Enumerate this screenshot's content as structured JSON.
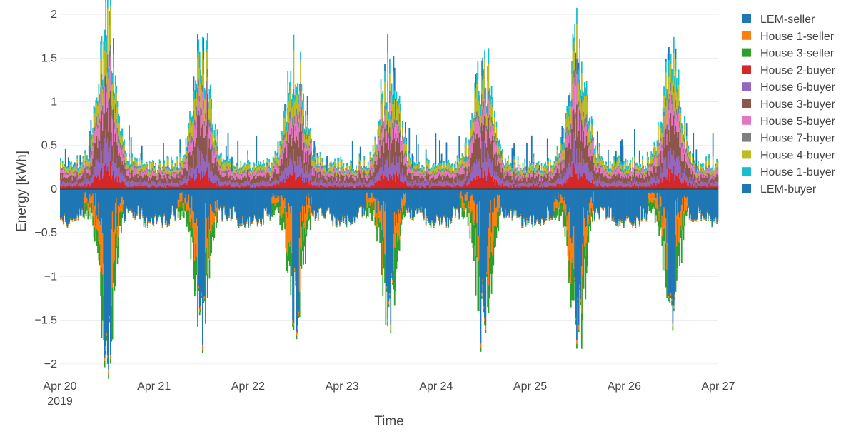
{
  "chart_data": {
    "type": "bar",
    "mode": "relative-stacked",
    "title": "",
    "xlabel": "Time",
    "ylabel": "Energy [kWh]",
    "ylim": [
      -2.1,
      2.05
    ],
    "x_range": [
      "2019-04-20",
      "2019-04-27"
    ],
    "x_ticks": [
      {
        "date": "2019-04-20",
        "label": "Apr 20",
        "sublabel": "2019"
      },
      {
        "date": "2019-04-21",
        "label": "Apr 21",
        "sublabel": ""
      },
      {
        "date": "2019-04-22",
        "label": "Apr 22",
        "sublabel": ""
      },
      {
        "date": "2019-04-23",
        "label": "Apr 23",
        "sublabel": ""
      },
      {
        "date": "2019-04-24",
        "label": "Apr 24",
        "sublabel": ""
      },
      {
        "date": "2019-04-25",
        "label": "Apr 25",
        "sublabel": ""
      },
      {
        "date": "2019-04-26",
        "label": "Apr 26",
        "sublabel": ""
      },
      {
        "date": "2019-04-27",
        "label": "Apr 27",
        "sublabel": ""
      }
    ],
    "y_ticks": [
      {
        "value": 2,
        "label": "2"
      },
      {
        "value": 1.5,
        "label": "1.5"
      },
      {
        "value": 1,
        "label": "1"
      },
      {
        "value": 0.5,
        "label": "0.5"
      },
      {
        "value": 0,
        "label": "0"
      },
      {
        "value": -0.5,
        "label": "−0.5"
      },
      {
        "value": -1,
        "label": "−1"
      },
      {
        "value": -1.5,
        "label": "−1.5"
      },
      {
        "value": -2,
        "label": "−2"
      }
    ],
    "grid": true,
    "legend_position": "right",
    "daily_shape": {
      "note_days": [
        "Apr 20",
        "Apr 21",
        "Apr 22",
        "Apr 23",
        "Apr 24",
        "Apr 25",
        "Apr 26"
      ],
      "peak_positive_kwh": [
        1.9,
        1.6,
        1.5,
        1.4,
        1.6,
        1.75,
        1.45
      ],
      "peak_negative_kwh": [
        -1.9,
        -1.6,
        -1.45,
        -1.5,
        -1.7,
        -1.75,
        -1.5
      ]
    },
    "series": [
      {
        "name": "LEM-seller",
        "color": "#1f77b4",
        "side": "positive"
      },
      {
        "name": "House 1-seller",
        "color": "#ff7f0e",
        "side": "negative"
      },
      {
        "name": "House 3-seller",
        "color": "#2ca02c",
        "side": "negative"
      },
      {
        "name": "House 2-buyer",
        "color": "#d62728",
        "side": "positive"
      },
      {
        "name": "House 6-buyer",
        "color": "#9467bd",
        "side": "positive"
      },
      {
        "name": "House 3-buyer",
        "color": "#8c564b",
        "side": "positive"
      },
      {
        "name": "House 5-buyer",
        "color": "#e377c2",
        "side": "positive"
      },
      {
        "name": "House 7-buyer",
        "color": "#7f7f7f",
        "side": "positive"
      },
      {
        "name": "House 4-buyer",
        "color": "#bcbd22",
        "side": "positive"
      },
      {
        "name": "House 1-buyer",
        "color": "#17becf",
        "side": "positive"
      },
      {
        "name": "LEM-buyer",
        "color": "#1f77b4",
        "side": "negative"
      }
    ]
  }
}
